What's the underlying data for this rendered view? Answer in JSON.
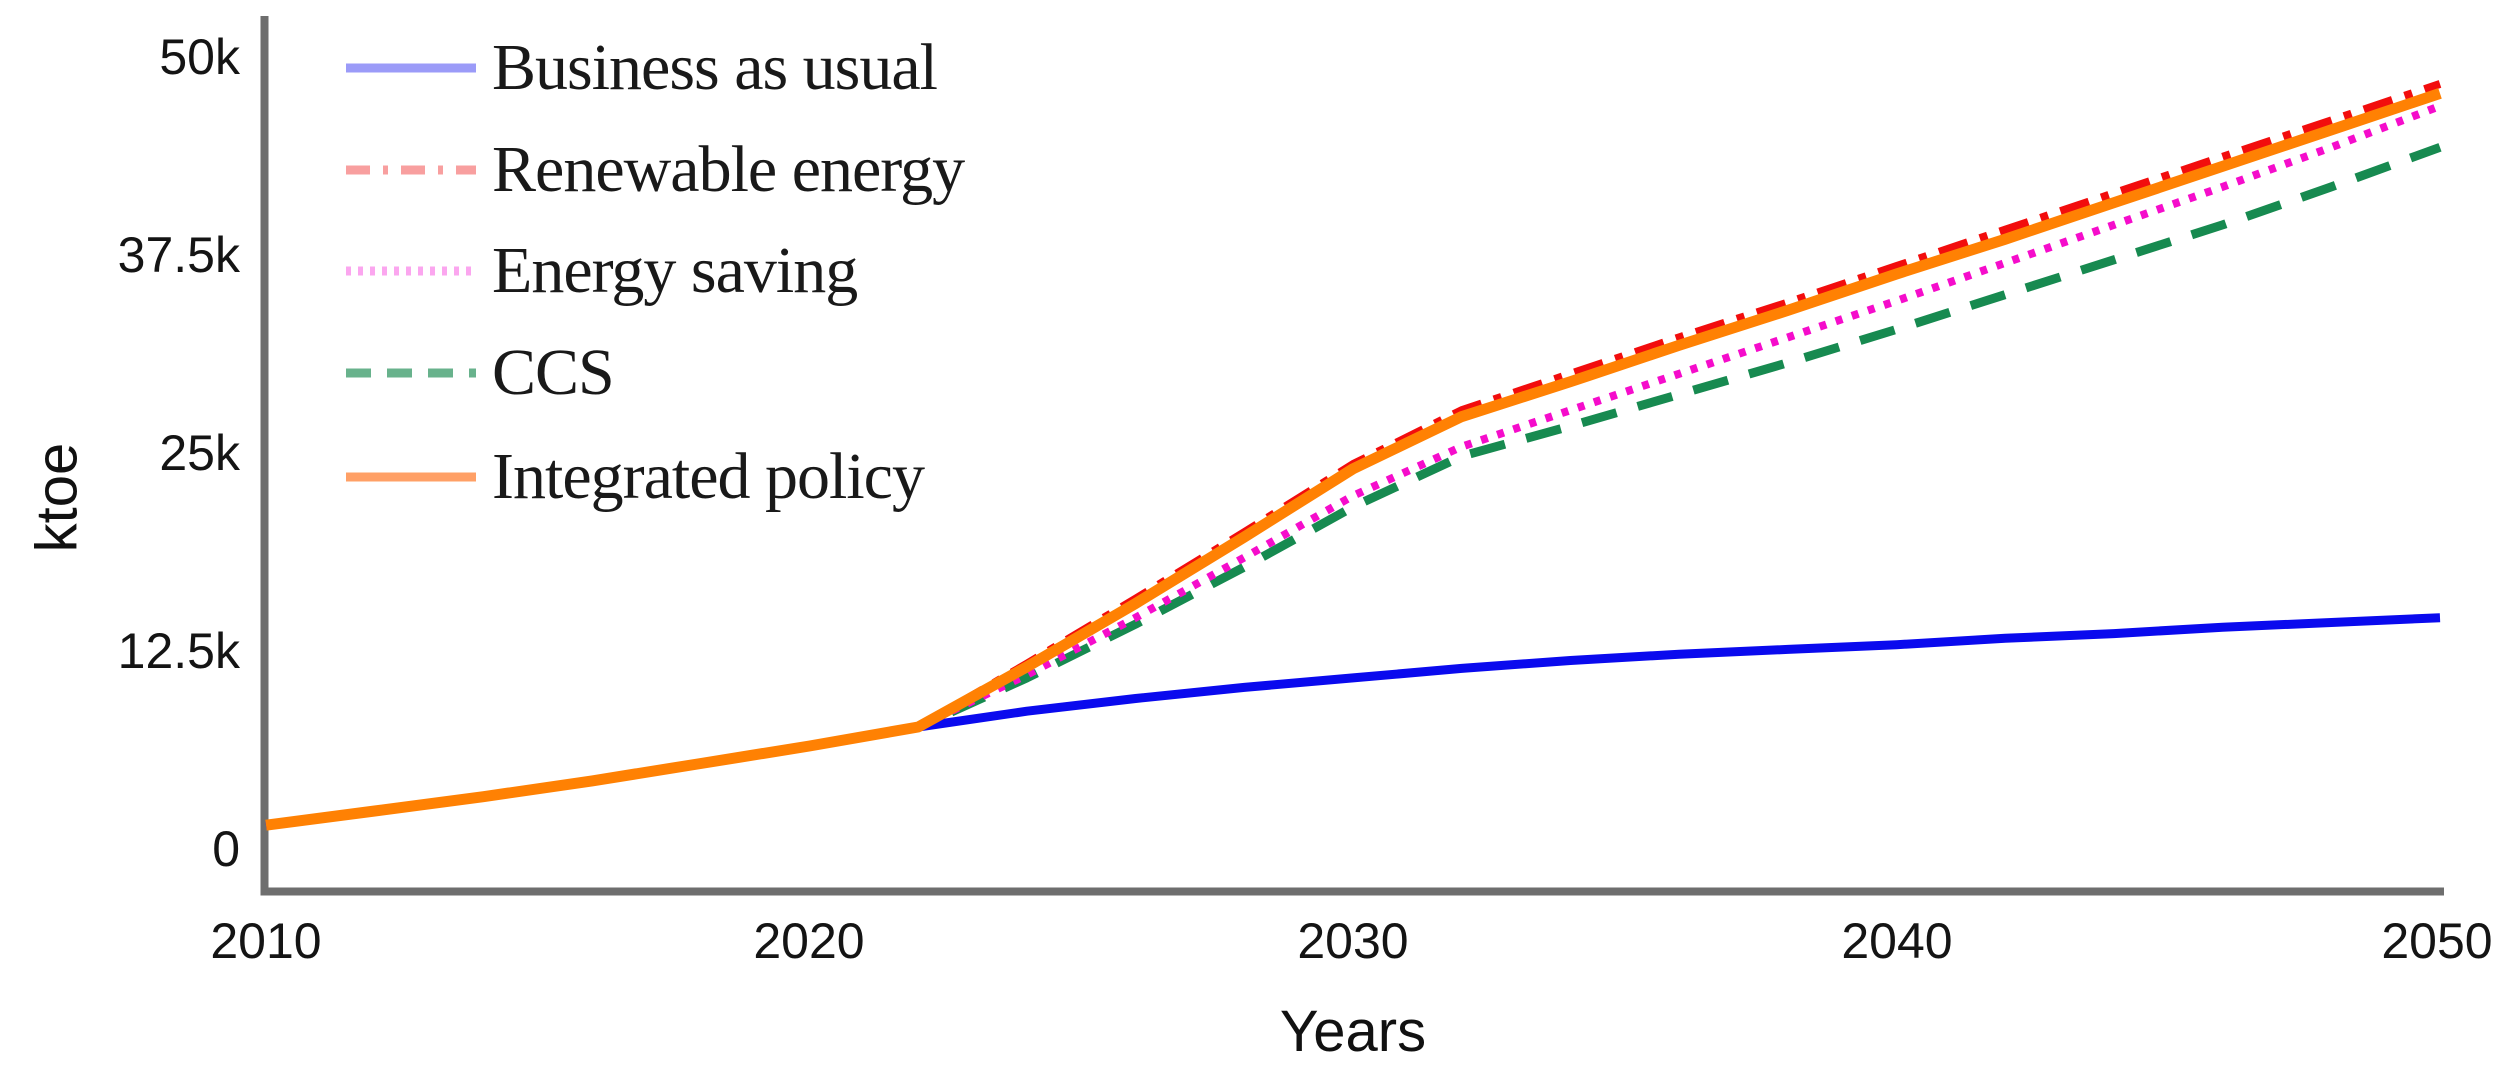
{
  "chart_data": {
    "type": "line",
    "title": "",
    "xlabel": "Years",
    "ylabel": "ktoe",
    "xlim": [
      2010,
      2050
    ],
    "ylim": [
      0,
      50000
    ],
    "grid": false,
    "legend_position": "top-left",
    "axis_color": "#6e6e6e",
    "x_ticks": [
      {
        "label": "2010",
        "year": 2010
      },
      {
        "label": "2020",
        "year": 2020
      },
      {
        "label": "2030",
        "year": 2030
      },
      {
        "label": "2040",
        "year": 2040
      },
      {
        "label": "2050",
        "year": 2050
      }
    ],
    "y_ticks": [
      {
        "label": "0",
        "value": 0
      },
      {
        "label": "12.5k",
        "value": 12500
      },
      {
        "label": "25k",
        "value": 25000
      },
      {
        "label": "37.5k",
        "value": 37500
      },
      {
        "label": "50k",
        "value": 50000
      }
    ],
    "years": [
      2010,
      2012,
      2014,
      2016,
      2018,
      2020,
      2022,
      2024,
      2026,
      2028,
      2030,
      2032,
      2034,
      2036,
      2038,
      2040,
      2042,
      2044,
      2046,
      2048,
      2050
    ],
    "series": [
      {
        "name": "Business as usual",
        "color": "#0a0aee",
        "legend_color": "#9b9bf8",
        "style": "solid",
        "width": 9,
        "values": [
          1500,
          2400,
          3300,
          4300,
          5400,
          6500,
          7700,
          8700,
          9500,
          10200,
          10800,
          11400,
          11900,
          12300,
          12600,
          12900,
          13300,
          13600,
          14000,
          14300,
          14600
        ]
      },
      {
        "name": "Renewable energy",
        "color": "#f20d0d",
        "legend_color": "#f89f9f",
        "style": "dashdot",
        "width": 8,
        "values": [
          1500,
          2400,
          3300,
          4300,
          5400,
          6500,
          7700,
          11700,
          15800,
          20000,
          24300,
          27700,
          30000,
          32300,
          34500,
          36800,
          39100,
          41400,
          43700,
          46000,
          48300
        ]
      },
      {
        "name": "Energy saving",
        "color": "#f50ccb",
        "legend_color": "#fba6ef",
        "style": "dotted",
        "width": 8,
        "values": [
          1500,
          2400,
          3300,
          4300,
          5400,
          6500,
          7700,
          11000,
          14600,
          18400,
          22300,
          25400,
          27700,
          30000,
          32300,
          34600,
          37000,
          39400,
          41800,
          44300,
          46900
        ]
      },
      {
        "name": "CCS",
        "color": "#178a50",
        "legend_color": "#68b28c",
        "style": "dashed",
        "width": 9,
        "values": [
          1500,
          2400,
          3300,
          4300,
          5400,
          6500,
          7700,
          10800,
          14200,
          17800,
          21600,
          24800,
          26700,
          28700,
          30700,
          32800,
          35000,
          37200,
          39400,
          41800,
          44300
        ]
      },
      {
        "name": "Integrated policy",
        "color": "#ff8103",
        "legend_color": "#ffa066",
        "style": "solid",
        "width": 11,
        "values": [
          1500,
          2400,
          3300,
          4300,
          5400,
          6500,
          7700,
          11500,
          15500,
          19700,
          24000,
          27300,
          29500,
          31800,
          34000,
          36300,
          38500,
          40800,
          43100,
          45400,
          47700
        ]
      }
    ],
    "draw_order": [
      1,
      3,
      2,
      0,
      4
    ]
  }
}
